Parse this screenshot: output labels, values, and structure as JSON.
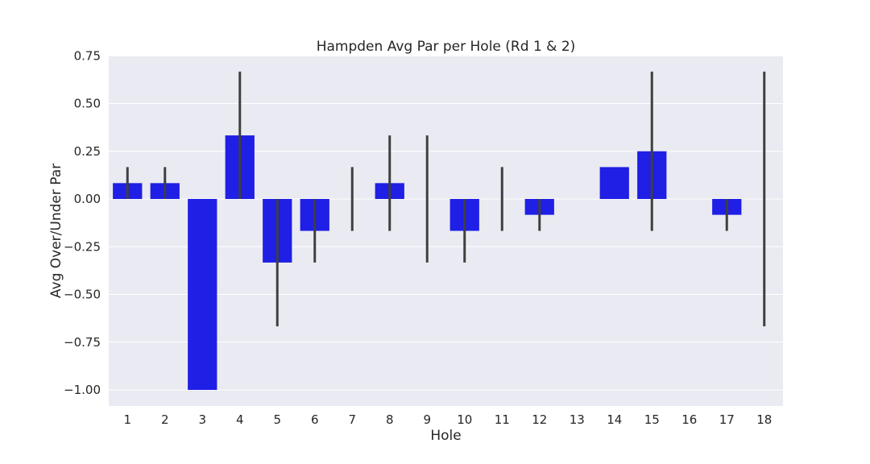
{
  "chart_data": {
    "type": "bar",
    "title": "Hampden Avg Par per Hole (Rd 1 & 2)",
    "xlabel": "Hole",
    "ylabel": "Avg Over/Under Par",
    "categories": [
      "1",
      "2",
      "3",
      "4",
      "5",
      "6",
      "7",
      "8",
      "9",
      "10",
      "11",
      "12",
      "13",
      "14",
      "15",
      "16",
      "17",
      "18"
    ],
    "values": [
      0.083,
      0.083,
      -1.0,
      0.333,
      -0.333,
      -0.167,
      0.0,
      0.083,
      0.0,
      -0.167,
      0.0,
      -0.083,
      0.0,
      0.167,
      0.25,
      0.0,
      -0.083,
      0.0
    ],
    "error_low": [
      0.0,
      0.0,
      -1.0,
      0.0,
      -0.667,
      -0.333,
      -0.167,
      -0.167,
      -0.333,
      -0.333,
      -0.167,
      -0.167,
      0.0,
      0.167,
      -0.167,
      0.0,
      -0.167,
      -0.667
    ],
    "error_high": [
      0.167,
      0.167,
      -1.0,
      0.667,
      0.0,
      0.0,
      0.167,
      0.333,
      0.333,
      0.0,
      0.167,
      0.0,
      0.0,
      0.167,
      0.667,
      0.0,
      0.0,
      0.667
    ],
    "ylim": [
      -1.1,
      0.75
    ],
    "yticks": [
      "0.75",
      "0.50",
      "0.25",
      "0.00",
      "−0.25",
      "−0.50",
      "−0.75",
      "−1.00"
    ],
    "ytick_values": [
      0.75,
      0.5,
      0.25,
      0.0,
      -0.25,
      -0.5,
      -0.75,
      -1.0
    ],
    "grid": true,
    "bar_color": "#1f1fe6",
    "errorbar_color": "#3f3f3f",
    "background_color": "#eaeaf2"
  }
}
